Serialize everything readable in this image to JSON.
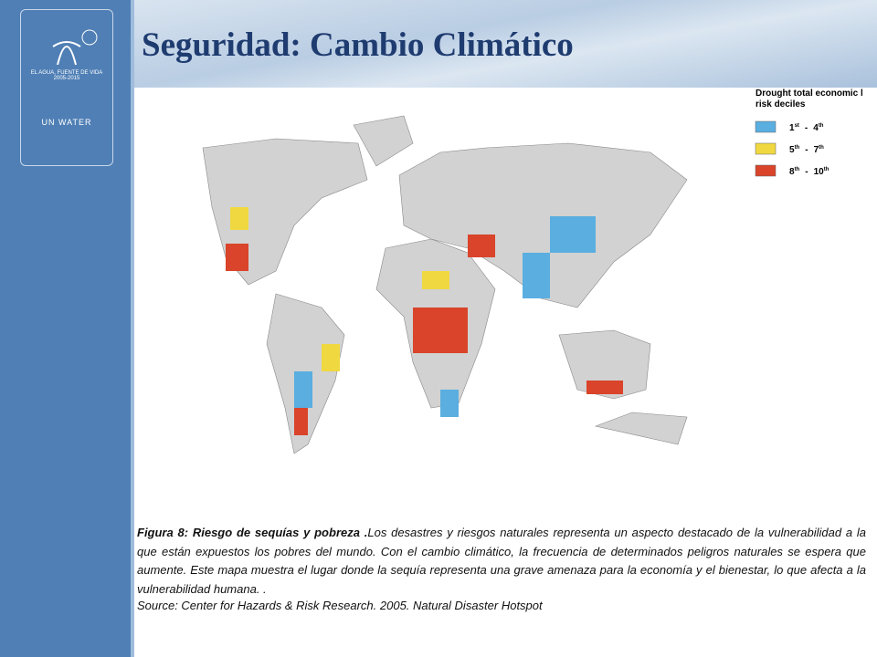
{
  "header": {
    "title": "Seguridad: Cambio Climático"
  },
  "logo": {
    "line1": "EL AGUA, FUENTE DE VIDA",
    "line2": "2005-2015",
    "line3": "UN WATER"
  },
  "legend": {
    "title_line1": "Drought total economic loss",
    "title_line2": "risk deciles",
    "items": [
      {
        "from": "1",
        "from_sup": "st",
        "dash": "-",
        "to": "4",
        "to_sup": "th"
      },
      {
        "from": "5",
        "from_sup": "th",
        "dash": "-",
        "to": "7",
        "to_sup": "th"
      },
      {
        "from": "8",
        "from_sup": "th",
        "dash": "-",
        "to": "10",
        "to_sup": "th"
      }
    ]
  },
  "caption": {
    "lead": "Figura 8: Riesgo de sequías y pobreza .",
    "body": "Los desastres y riesgos naturales representa un aspecto destacado de la vulnerabilidad a la que están expuestos los pobres del mundo. Con el cambio climático, la frecuencia de determinados peligros naturales se espera que aumente. Este mapa muestra el lugar donde la sequía representa una grave amenaza para la economía y el bienestar, lo que afecta a la vulnerabilidad humana. .",
    "source": "Source: Center for Hazards & Risk Research. 2005.  Natural Disaster Hotspot"
  }
}
